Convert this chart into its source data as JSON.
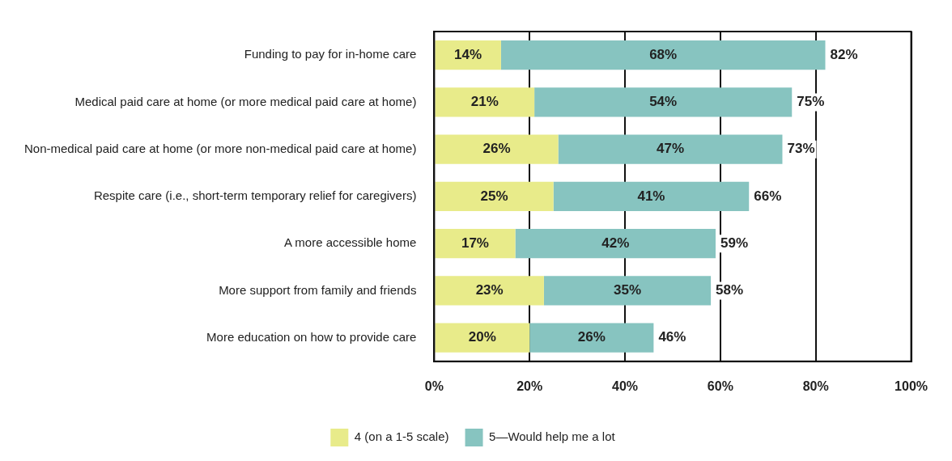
{
  "chart_data": {
    "type": "bar",
    "orientation": "horizontal",
    "stacked": true,
    "categories": [
      "Funding to pay for in-home care",
      "Medical paid care at home (or more medical paid care at home)",
      "Non-medical paid care at home (or more non-medical paid care at home)",
      "Respite care (i.e., short-term temporary relief for caregivers)",
      "A more accessible home",
      "More support from family and friends",
      "More education on how to provide care"
    ],
    "series": [
      {
        "name": "4 (on a 1-5 scale)",
        "color": "#e8eb8a",
        "values": [
          14,
          21,
          26,
          25,
          17,
          23,
          20
        ],
        "value_labels": [
          "14%",
          "21%",
          "26%",
          "25%",
          "17%",
          "23%",
          "20%"
        ]
      },
      {
        "name": "5—Would help me a lot",
        "color": "#87c4c0",
        "values": [
          68,
          54,
          47,
          41,
          42,
          35,
          26
        ],
        "value_labels": [
          "68%",
          "54%",
          "47%",
          "41%",
          "42%",
          "35%",
          "26%"
        ]
      }
    ],
    "totals": [
      "82%",
      "75%",
      "73%",
      "66%",
      "59%",
      "58%",
      "46%"
    ],
    "xlim": [
      0,
      100
    ],
    "xticks": [
      {
        "value": 0,
        "label": "0%"
      },
      {
        "value": 20,
        "label": "20%"
      },
      {
        "value": 40,
        "label": "40%"
      },
      {
        "value": 60,
        "label": "60%"
      },
      {
        "value": 80,
        "label": "80%"
      },
      {
        "value": 100,
        "label": "100%"
      }
    ],
    "grid": "x",
    "legend": "bottom"
  }
}
